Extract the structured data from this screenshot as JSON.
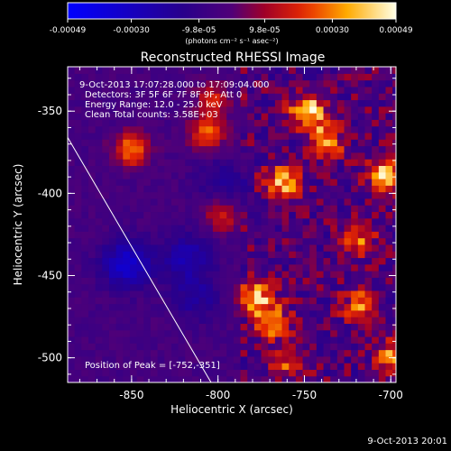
{
  "chart_data": {
    "type": "heatmap",
    "title": "Reconstructed RHESSI Image",
    "xlabel": "Heliocentric X (arcsec)",
    "ylabel": "Heliocentric Y (arcsec)",
    "xlim": [
      -887,
      -697
    ],
    "ylim": [
      -515,
      -323
    ],
    "x_ticks": [
      -850,
      -800,
      -750,
      -700
    ],
    "x_tick_labels": [
      "-850",
      "-800",
      "-750",
      "-700"
    ],
    "y_ticks": [
      -350,
      -400,
      -450,
      -500
    ],
    "y_tick_labels": [
      "-350",
      "-400",
      "-450",
      "-500"
    ],
    "colorbar": {
      "range": [
        -0.00049,
        0.00049
      ],
      "ticks": [
        -0.00049,
        -0.0003,
        -9.8e-05,
        9.8e-05,
        0.0003,
        0.00049
      ],
      "tick_labels": [
        "-0.00049",
        "-0.00030",
        "-9.8e-05",
        "9.8e-05",
        "0.00030",
        "0.00049"
      ],
      "units": "(photons cm⁻² s⁻¹ asec⁻²)"
    },
    "annotations": [
      "9-Oct-2013 17:07:28.000 to 17:09:04.000",
      "Detectors: 3F 5F 6F 7F 8F 9F, Att 0",
      "Energy Range: 12.0 - 25.0 keV",
      "Clean     Total counts: 3.58E+03",
      "Position of Peak = [-752,-351]"
    ],
    "peak": [
      -752,
      -351
    ],
    "limb_line": [
      [
        -887,
        -366
      ],
      [
        -804,
        -515
      ]
    ],
    "hotspots": [
      {
        "x": -750,
        "y": -352,
        "value": 0.00049
      },
      {
        "x": -705,
        "y": -390,
        "value": 0.00045
      },
      {
        "x": -740,
        "y": -370,
        "value": 0.0004
      },
      {
        "x": -765,
        "y": -395,
        "value": 0.0004
      },
      {
        "x": -780,
        "y": -465,
        "value": 0.00042
      },
      {
        "x": -770,
        "y": -480,
        "value": 0.00035
      },
      {
        "x": -852,
        "y": -375,
        "value": 0.00035
      },
      {
        "x": -808,
        "y": -365,
        "value": 0.0003
      },
      {
        "x": -720,
        "y": -470,
        "value": 0.0003
      },
      {
        "x": -700,
        "y": -500,
        "value": 0.00032
      },
      {
        "x": -800,
        "y": -415,
        "value": 0.00022
      },
      {
        "x": -720,
        "y": -430,
        "value": 0.00025
      },
      {
        "x": -760,
        "y": -505,
        "value": 0.00028
      },
      {
        "x": -805,
        "y": -345,
        "value": 0.00022
      }
    ],
    "coldspots": [
      {
        "x": -855,
        "y": -445,
        "value": -0.0003
      },
      {
        "x": -820,
        "y": -440,
        "value": -0.0002
      },
      {
        "x": -815,
        "y": -465,
        "value": -0.00015
      },
      {
        "x": -800,
        "y": -395,
        "value": -0.00012
      }
    ]
  },
  "footer": {
    "timestamp": "9-Oct-2013 20:01"
  }
}
